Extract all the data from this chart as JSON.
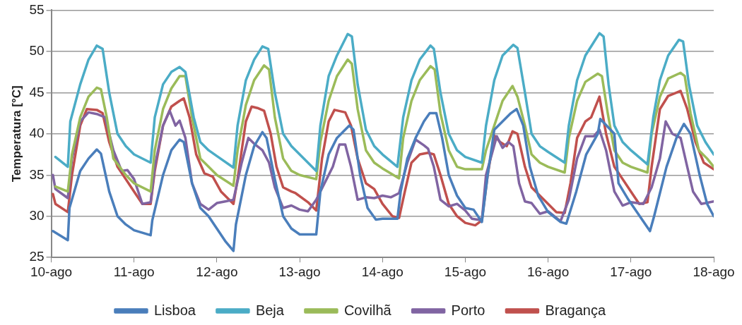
{
  "chart_data": {
    "type": "line",
    "ylabel": "Temperatura [°C]",
    "xlim": [
      10,
      18
    ],
    "xticks": [
      {
        "value": 10,
        "label": "10-ago"
      },
      {
        "value": 11,
        "label": "11-ago"
      },
      {
        "value": 12,
        "label": "12-ago"
      },
      {
        "value": 13,
        "label": "13-ago"
      },
      {
        "value": 14,
        "label": "14-ago"
      },
      {
        "value": 15,
        "label": "15-ago"
      },
      {
        "value": 16,
        "label": "16-ago"
      },
      {
        "value": 17,
        "label": "17-ago"
      },
      {
        "value": 18,
        "label": "18-ago"
      }
    ],
    "ylim": [
      25,
      55
    ],
    "yticks": [
      25,
      30,
      35,
      40,
      45,
      50,
      55
    ],
    "grid": "y",
    "legend": "bottom",
    "marker": "none",
    "line_style": "solid",
    "series": [
      {
        "name": "Lisboa",
        "color": "#4a7ebb",
        "x": [
          10.02,
          10.2,
          10.22,
          10.35,
          10.45,
          10.55,
          10.6,
          10.7,
          10.8,
          10.9,
          11.0,
          11.2,
          11.22,
          11.35,
          11.45,
          11.55,
          11.6,
          11.7,
          11.8,
          11.9,
          12.0,
          12.1,
          12.2,
          12.23,
          12.35,
          12.45,
          12.55,
          12.6,
          12.7,
          12.8,
          12.9,
          13.0,
          13.2,
          13.25,
          13.35,
          13.45,
          13.6,
          13.65,
          13.73,
          13.82,
          13.92,
          14.0,
          14.18,
          14.22,
          14.3,
          14.4,
          14.5,
          14.57,
          14.65,
          14.72,
          14.8,
          14.9,
          15.0,
          15.1,
          15.2,
          15.27,
          15.35,
          15.45,
          15.55,
          15.62,
          15.7,
          15.78,
          15.88,
          16.0,
          16.15,
          16.22,
          16.34,
          16.46,
          16.6,
          16.63,
          16.8,
          16.85,
          16.97,
          17.23,
          17.28,
          17.43,
          17.55,
          17.64,
          17.72,
          17.83,
          17.92,
          18.0
        ],
        "values": [
          28.2,
          27.1,
          31,
          35.5,
          37,
          38.1,
          37.6,
          33,
          30,
          29,
          28.3,
          27.7,
          29.5,
          35,
          38,
          39.3,
          39,
          34,
          31,
          30,
          28.5,
          27,
          25.8,
          29,
          35,
          38.5,
          40.2,
          39.5,
          34.5,
          30,
          28.5,
          27.8,
          27.8,
          33,
          37.5,
          39.5,
          41,
          40.5,
          35,
          31,
          29.6,
          29.7,
          29.7,
          33,
          37,
          39.5,
          41.5,
          42.5,
          42.5,
          39.5,
          35,
          32.5,
          31,
          30.8,
          29.3,
          35,
          40.5,
          41.5,
          42.5,
          43,
          41,
          36,
          32.5,
          30.5,
          29.3,
          29.1,
          33,
          37.5,
          40,
          41.8,
          40,
          34,
          32,
          28.2,
          30,
          36,
          39.5,
          41.2,
          40,
          35,
          31.5,
          30
        ]
      },
      {
        "name": "Beja",
        "color": "#4bacc6",
        "x": [
          10.05,
          10.2,
          10.23,
          10.35,
          10.45,
          10.55,
          10.62,
          10.7,
          10.8,
          10.9,
          11.0,
          11.2,
          11.25,
          11.35,
          11.45,
          11.55,
          11.62,
          11.72,
          11.8,
          11.9,
          12.0,
          12.2,
          12.25,
          12.35,
          12.45,
          12.55,
          12.62,
          12.7,
          12.8,
          12.9,
          13.0,
          13.2,
          13.25,
          13.35,
          13.45,
          13.58,
          13.63,
          13.7,
          13.8,
          13.9,
          14.0,
          14.18,
          14.25,
          14.35,
          14.45,
          14.58,
          14.62,
          14.7,
          14.8,
          14.9,
          15.0,
          15.2,
          15.25,
          15.35,
          15.45,
          15.58,
          15.63,
          15.72,
          15.8,
          15.9,
          16.0,
          16.2,
          16.25,
          16.35,
          16.45,
          16.62,
          16.67,
          16.73,
          16.8,
          16.9,
          17.0,
          17.2,
          17.27,
          17.35,
          17.45,
          17.58,
          17.63,
          17.7,
          17.8,
          17.9,
          18.0
        ],
        "values": [
          37.2,
          36,
          41.5,
          46,
          49,
          50.7,
          50.3,
          45,
          40,
          38.5,
          37.5,
          36.5,
          42,
          46,
          47.5,
          48.1,
          47.5,
          42,
          39,
          38,
          37.3,
          35.9,
          41,
          46.5,
          49,
          50.6,
          50.3,
          45,
          40,
          38.5,
          37.5,
          35.5,
          41,
          47,
          49.5,
          52.1,
          51.8,
          46,
          40.5,
          38.5,
          37.5,
          36,
          42,
          46.5,
          49,
          50.7,
          50.3,
          45,
          40,
          38,
          37.2,
          36.5,
          41,
          46.5,
          49.5,
          50.8,
          50.4,
          45,
          40,
          38.5,
          37.8,
          36.5,
          41,
          46.5,
          49.5,
          52.2,
          51.8,
          46,
          41,
          39,
          38,
          36.3,
          42,
          46.5,
          49.5,
          51.4,
          51.2,
          46,
          41,
          39,
          37.5
        ]
      },
      {
        "name": "Covilhã",
        "color": "#9bbb59",
        "x": [
          10.05,
          10.2,
          10.25,
          10.35,
          10.45,
          10.55,
          10.6,
          10.67,
          10.75,
          10.9,
          11.0,
          11.2,
          11.25,
          11.35,
          11.45,
          11.55,
          11.62,
          11.7,
          11.8,
          11.9,
          12.0,
          12.2,
          12.25,
          12.35,
          12.45,
          12.57,
          12.63,
          12.7,
          12.8,
          12.9,
          13.0,
          13.2,
          13.25,
          13.35,
          13.45,
          13.58,
          13.63,
          13.7,
          13.8,
          13.9,
          14.0,
          14.2,
          14.25,
          14.35,
          14.45,
          14.58,
          14.63,
          14.7,
          14.8,
          14.9,
          15.0,
          15.2,
          15.25,
          15.35,
          15.45,
          15.57,
          15.63,
          15.72,
          15.8,
          15.9,
          16.0,
          16.2,
          16.25,
          16.35,
          16.45,
          16.6,
          16.65,
          16.72,
          16.8,
          16.9,
          17.0,
          17.2,
          17.25,
          17.35,
          17.45,
          17.6,
          17.65,
          17.72,
          17.82,
          17.92,
          18.0
        ],
        "values": [
          33.6,
          33,
          37.5,
          42,
          44.5,
          45.6,
          45.4,
          42,
          37,
          35,
          34,
          33,
          38,
          43,
          45.5,
          47,
          47,
          42,
          37,
          36,
          35,
          33.7,
          38,
          43.5,
          46.5,
          48.3,
          47.8,
          42,
          37,
          35.5,
          35,
          34.5,
          39,
          44,
          47,
          49,
          48.5,
          43,
          38,
          36.5,
          35.8,
          34.6,
          39.5,
          44,
          46.5,
          48.2,
          47.8,
          42.5,
          38,
          36,
          35.7,
          35.7,
          38,
          41,
          44,
          45.8,
          44.5,
          41,
          37.5,
          36.5,
          36,
          35.3,
          39.5,
          44,
          46.3,
          47.3,
          47,
          42.5,
          38,
          36.5,
          36,
          35.3,
          40,
          44.5,
          46.7,
          47.4,
          47,
          42.5,
          38,
          37,
          36
        ]
      },
      {
        "name": "Porto",
        "color": "#8064a2",
        "x": [
          10.02,
          10.05,
          10.2,
          10.25,
          10.35,
          10.45,
          10.55,
          10.65,
          10.75,
          10.85,
          10.92,
          11.0,
          11.1,
          11.2,
          11.25,
          11.35,
          11.43,
          11.5,
          11.55,
          11.62,
          11.7,
          11.8,
          11.9,
          12.0,
          12.1,
          12.2,
          12.3,
          12.38,
          12.45,
          12.55,
          12.63,
          12.7,
          12.8,
          12.9,
          13.0,
          13.1,
          13.2,
          13.3,
          13.4,
          13.48,
          13.55,
          13.62,
          13.7,
          13.8,
          13.9,
          14.0,
          14.1,
          14.2,
          14.3,
          14.4,
          14.5,
          14.55,
          14.62,
          14.7,
          14.8,
          14.9,
          15.0,
          15.08,
          15.2,
          15.25,
          15.38,
          15.45,
          15.52,
          15.58,
          15.65,
          15.72,
          15.8,
          15.9,
          16.0,
          16.15,
          16.25,
          16.35,
          16.45,
          16.55,
          16.62,
          16.7,
          16.8,
          16.9,
          17.0,
          17.15,
          17.25,
          17.35,
          17.42,
          17.5,
          17.6,
          17.68,
          17.75,
          17.85,
          18.0
        ],
        "values": [
          35,
          33.3,
          32.2,
          37,
          41.5,
          42.6,
          42.4,
          42,
          38,
          35.5,
          35.6,
          34.5,
          31.5,
          31.7,
          36,
          41,
          42.8,
          41,
          41.6,
          39.5,
          34,
          31.5,
          30.8,
          31.6,
          31.8,
          32,
          36.5,
          39.5,
          38.8,
          38,
          36.5,
          33.5,
          31,
          31.3,
          30.8,
          30.6,
          32,
          34,
          36,
          38.7,
          38.7,
          36,
          32,
          32.3,
          32.2,
          32.5,
          32.3,
          32.8,
          36.5,
          39.3,
          38.6,
          38.2,
          36,
          32,
          31.2,
          31.5,
          30.7,
          29.7,
          29.5,
          35,
          39.7,
          38.3,
          39,
          38.5,
          34,
          31.8,
          31.6,
          30.3,
          30.6,
          29.4,
          32,
          37,
          39.7,
          39.7,
          40.5,
          38,
          33,
          31.3,
          31.7,
          31.5,
          33.5,
          37,
          41.5,
          40,
          39.5,
          36,
          33,
          31.5,
          31.8
        ]
      },
      {
        "name": "Bragança",
        "color": "#c0504d",
        "x": [
          10.02,
          10.05,
          10.2,
          10.25,
          10.35,
          10.43,
          10.55,
          10.62,
          10.7,
          10.8,
          10.9,
          11.0,
          11.1,
          11.2,
          11.25,
          11.35,
          11.45,
          11.55,
          11.6,
          11.67,
          11.75,
          11.85,
          11.95,
          12.05,
          12.2,
          12.25,
          12.35,
          12.42,
          12.5,
          12.57,
          12.65,
          12.72,
          12.8,
          12.9,
          12.95,
          13.1,
          13.2,
          13.27,
          13.35,
          13.42,
          13.55,
          13.62,
          13.7,
          13.8,
          13.9,
          14.0,
          14.12,
          14.2,
          14.27,
          14.35,
          14.45,
          14.55,
          14.62,
          14.7,
          14.8,
          14.9,
          15.0,
          15.12,
          15.2,
          15.27,
          15.35,
          15.42,
          15.5,
          15.57,
          15.63,
          15.72,
          15.8,
          15.9,
          16.0,
          16.1,
          16.2,
          16.27,
          16.35,
          16.45,
          16.52,
          16.62,
          16.7,
          16.8,
          16.9,
          17.0,
          17.1,
          17.2,
          17.25,
          17.35,
          17.45,
          17.55,
          17.6,
          17.68,
          17.78,
          17.88,
          18.0
        ],
        "values": [
          32.7,
          31.5,
          30.5,
          35,
          41,
          43,
          42.9,
          42.5,
          39,
          36,
          34.5,
          33,
          31.5,
          31.5,
          35.5,
          41,
          43.3,
          44,
          44.3,
          42,
          37.5,
          35.2,
          34.8,
          33,
          31.5,
          34.5,
          41.5,
          43.3,
          43.1,
          42.8,
          40,
          36,
          33.5,
          33,
          32.8,
          31.7,
          30.7,
          37,
          41.5,
          42.9,
          42.6,
          41,
          37,
          34,
          33.3,
          31.5,
          30,
          29.8,
          33,
          36.5,
          37.5,
          37.7,
          37.5,
          35,
          31.5,
          30,
          29.2,
          28.9,
          29.5,
          35,
          39.8,
          39,
          38.5,
          40.3,
          40,
          36,
          33.5,
          32.5,
          31.5,
          30.5,
          30.4,
          34,
          39.5,
          41.5,
          42,
          44.5,
          40,
          36,
          34.5,
          33,
          31.5,
          31.7,
          36,
          43,
          44.6,
          45,
          45.2,
          43,
          39,
          36.5,
          35.7
        ]
      }
    ]
  }
}
